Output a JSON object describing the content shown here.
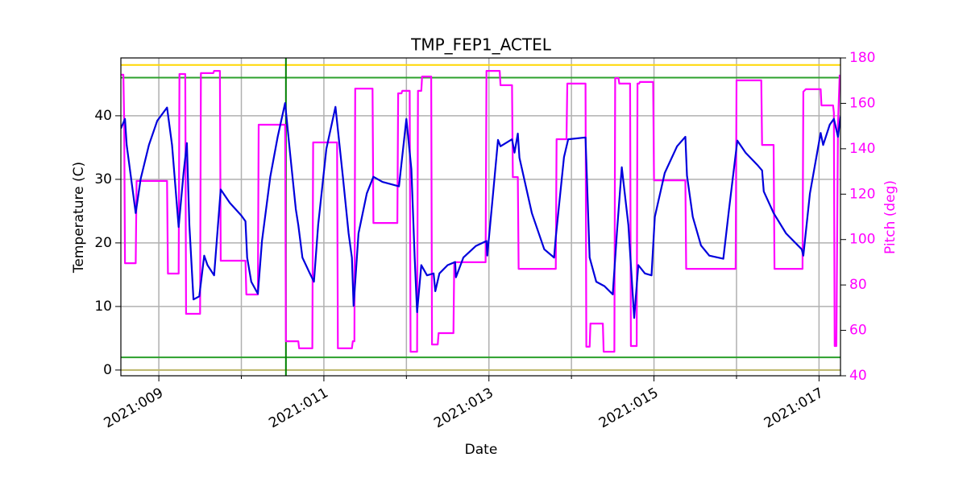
{
  "chart_data": {
    "type": "line",
    "title": "TMP_FEP1_ACTEL",
    "xlabel": "Date",
    "ylabel": "Temperature (C)",
    "y2label": "Pitch (deg)",
    "xlim": [
      8.54,
      17.26
    ],
    "xticks": [
      {
        "value": 9,
        "label": "2021:009"
      },
      {
        "value": 11,
        "label": "2021:011"
      },
      {
        "value": 13,
        "label": "2021:013"
      },
      {
        "value": 15,
        "label": "2021:015"
      },
      {
        "value": 17,
        "label": "2021:017"
      }
    ],
    "xminorticks": [
      10,
      12,
      14,
      16
    ],
    "ylim": [
      -0.9,
      49.1
    ],
    "yticks": [
      0,
      10,
      20,
      30,
      40
    ],
    "y2lim": [
      40,
      180
    ],
    "y2ticks": [
      40,
      60,
      80,
      100,
      120,
      140,
      160,
      180
    ],
    "y2color": "#ff00ff",
    "grid": true,
    "hlines": [
      {
        "value": 48,
        "color": "#ffd700"
      },
      {
        "value": 0,
        "color": "#bdb76b"
      },
      {
        "value": 46,
        "color": "#2ca02c"
      },
      {
        "value": 2,
        "color": "#2ca02c"
      }
    ],
    "vlines": [
      {
        "value": 10.54,
        "color": "#008000"
      }
    ],
    "series": [
      {
        "color": "#ff00ff",
        "axis": "y2",
        "x": [
          8.54,
          8.57,
          8.58,
          8.59,
          8.72,
          8.73,
          9.1,
          9.11,
          9.24,
          9.25,
          9.32,
          9.33,
          9.5,
          9.51,
          9.66,
          9.67,
          9.74,
          9.75,
          10.05,
          10.06,
          10.2,
          10.21,
          10.53,
          10.54,
          10.69,
          10.7,
          10.86,
          10.87,
          11.16,
          11.17,
          11.34,
          11.35,
          11.37,
          11.38,
          11.59,
          11.6,
          11.89,
          11.9,
          11.94,
          11.95,
          12.04,
          12.05,
          12.13,
          12.14,
          12.18,
          12.19,
          12.3,
          12.31,
          12.38,
          12.39,
          12.57,
          12.58,
          12.96,
          12.97,
          13.13,
          13.14,
          13.28,
          13.29,
          13.35,
          13.36,
          13.81,
          13.82,
          13.94,
          13.95,
          14.17,
          14.18,
          14.22,
          14.23,
          14.38,
          14.39,
          14.52,
          14.53,
          14.57,
          14.58,
          14.71,
          14.72,
          14.79,
          14.8,
          14.82,
          14.83,
          14.99,
          15.0,
          15.38,
          15.39,
          15.99,
          16.0,
          16.3,
          16.31,
          16.45,
          16.46,
          16.8,
          16.81,
          16.84,
          17.02,
          17.03,
          17.17,
          17.18,
          17.19,
          17.21,
          17.23,
          17.25
        ],
        "values": [
          172.6,
          172.6,
          152.4,
          89.6,
          89.6,
          125.8,
          125.8,
          85.0,
          85.0,
          172.9,
          172.9,
          67.3,
          67.3,
          173.3,
          173.3,
          174.3,
          174.3,
          90.7,
          90.7,
          75.8,
          75.8,
          150.6,
          150.6,
          55.2,
          55.2,
          52.1,
          52.1,
          142.8,
          142.8,
          52.1,
          52.1,
          55.2,
          55.2,
          166.5,
          166.5,
          107.3,
          107.3,
          164.4,
          164.4,
          165.5,
          165.5,
          50.6,
          50.6,
          165.5,
          165.5,
          171.8,
          171.8,
          53.8,
          53.8,
          58.8,
          58.8,
          90.0,
          90.0,
          174.3,
          174.3,
          168.0,
          168.0,
          127.5,
          127.5,
          87.1,
          87.1,
          144.2,
          144.2,
          168.7,
          168.7,
          52.8,
          52.8,
          63.0,
          63.0,
          50.6,
          50.6,
          171.1,
          171.1,
          168.7,
          168.7,
          53.1,
          53.1,
          168.7,
          168.7,
          169.4,
          169.4,
          126.1,
          126.1,
          87.1,
          87.1,
          170.1,
          170.1,
          141.7,
          141.7,
          87.1,
          87.1,
          165.1,
          166.2,
          166.2,
          159.1,
          159.1,
          155.9,
          53.1,
          53.1,
          150.6,
          172.6
        ]
      },
      {
        "color": "#0000dd",
        "axis": "y",
        "x": [
          8.54,
          8.59,
          8.61,
          8.72,
          8.78,
          8.88,
          8.98,
          9.1,
          9.16,
          9.24,
          9.3,
          9.34,
          9.37,
          9.42,
          9.49,
          9.55,
          9.59,
          9.67,
          9.75,
          9.86,
          10.0,
          10.05,
          10.07,
          10.12,
          10.2,
          10.25,
          10.35,
          10.44,
          10.53,
          10.59,
          10.66,
          10.69,
          10.74,
          10.83,
          10.88,
          10.93,
          11.03,
          11.14,
          11.23,
          11.3,
          11.34,
          11.36,
          11.42,
          11.52,
          11.6,
          11.71,
          11.91,
          12.0,
          12.06,
          12.1,
          12.13,
          12.18,
          12.25,
          12.33,
          12.35,
          12.4,
          12.5,
          12.59,
          12.6,
          12.69,
          12.84,
          12.97,
          12.98,
          13.05,
          13.11,
          13.14,
          13.28,
          13.31,
          13.35,
          13.37,
          13.52,
          13.67,
          13.79,
          13.81,
          13.91,
          13.96,
          14.17,
          14.22,
          14.3,
          14.4,
          14.5,
          14.55,
          14.61,
          14.69,
          14.76,
          14.81,
          14.89,
          14.97,
          15.01,
          15.13,
          15.28,
          15.38,
          15.4,
          15.47,
          15.57,
          15.67,
          15.84,
          15.91,
          16.01,
          16.11,
          16.25,
          16.31,
          16.33,
          16.45,
          16.6,
          16.79,
          16.81,
          16.89,
          17.02,
          17.05,
          17.13,
          17.18,
          17.23,
          17.26
        ],
        "values": [
          38.0,
          39.5,
          35.4,
          24.7,
          30.1,
          35.4,
          39.2,
          41.3,
          35.4,
          22.5,
          31.0,
          35.7,
          22.8,
          11.1,
          11.6,
          18.0,
          16.5,
          14.9,
          28.4,
          26.3,
          24.3,
          23.4,
          17.7,
          13.9,
          12.0,
          20.3,
          30.4,
          36.7,
          42.0,
          34.2,
          25.3,
          22.8,
          17.7,
          15.2,
          13.9,
          22.8,
          34.8,
          41.4,
          30.4,
          21.5,
          17.7,
          10.1,
          21.5,
          27.8,
          30.4,
          29.6,
          28.9,
          39.5,
          31.6,
          17.7,
          9.1,
          16.5,
          14.9,
          15.2,
          12.4,
          15.2,
          16.5,
          17.0,
          14.6,
          17.7,
          19.5,
          20.3,
          18.0,
          27.8,
          36.2,
          35.2,
          36.3,
          34.2,
          37.2,
          33.4,
          24.7,
          19.0,
          17.7,
          20.9,
          33.5,
          36.3,
          36.6,
          17.7,
          13.9,
          13.2,
          11.9,
          21.5,
          31.9,
          22.8,
          8.2,
          16.5,
          15.2,
          14.9,
          24.1,
          31.0,
          35.2,
          36.7,
          30.6,
          24.1,
          19.6,
          18.0,
          17.5,
          25.3,
          36.1,
          34.2,
          32.3,
          31.4,
          28.1,
          24.7,
          21.5,
          19.0,
          18.0,
          27.8,
          37.3,
          35.4,
          38.6,
          39.5,
          36.7,
          39.9
        ]
      }
    ]
  }
}
